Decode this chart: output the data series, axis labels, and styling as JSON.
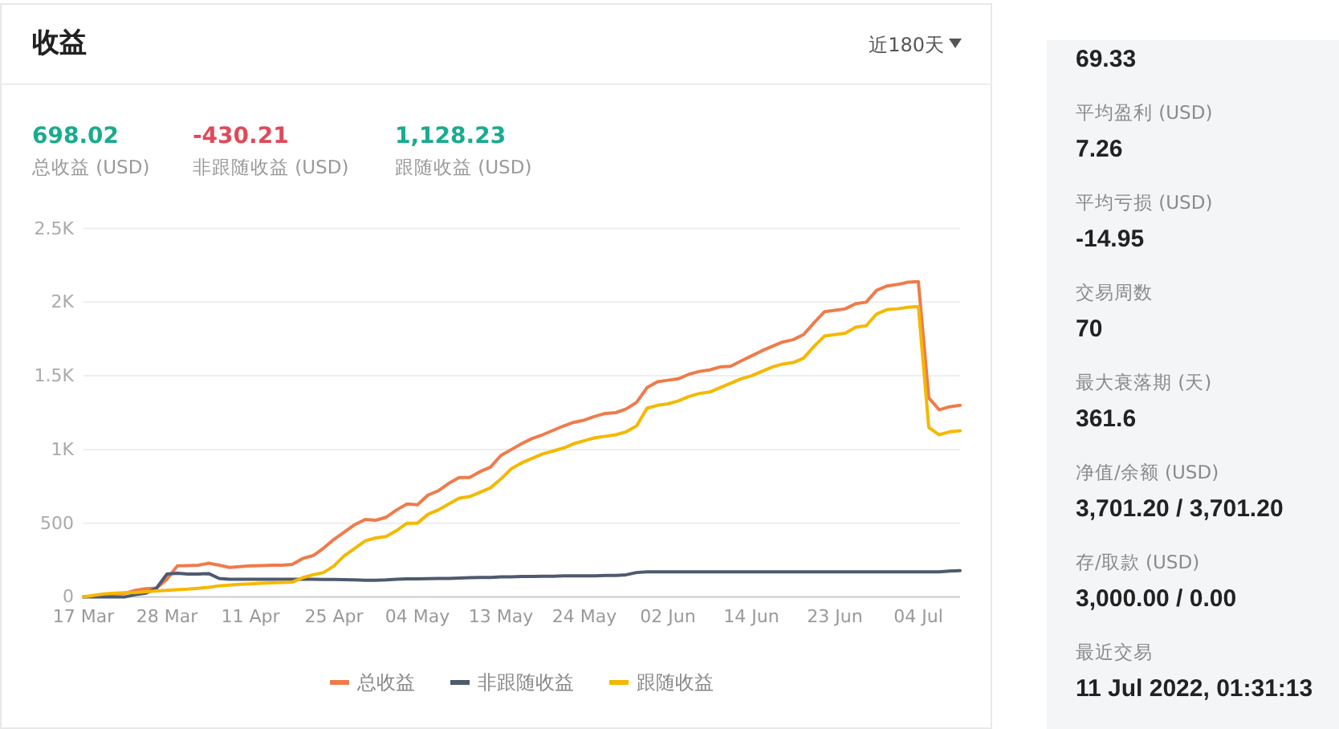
{
  "chart_data": [
    {
      "type": "line",
      "title": "收益",
      "annotations": [
        "近180天",
        "698.02",
        "总收益 (USD)",
        "-430.21",
        "非跟随收益 (USD)",
        "1,128.23",
        "跟随收益 (USD)"
      ],
      "categories": [
        "17 Mar",
        null,
        null,
        null,
        null,
        null,
        null,
        null,
        "28 Mar",
        null,
        null,
        null,
        null,
        null,
        null,
        null,
        "11 Apr",
        null,
        null,
        null,
        null,
        null,
        null,
        null,
        "25 Apr",
        null,
        null,
        null,
        null,
        null,
        null,
        null,
        "04 May",
        null,
        null,
        null,
        null,
        null,
        null,
        null,
        "13 May",
        null,
        null,
        null,
        null,
        null,
        null,
        null,
        "24 May",
        null,
        null,
        null,
        null,
        null,
        null,
        null,
        "02 Jun",
        null,
        null,
        null,
        null,
        null,
        null,
        null,
        "14 Jun",
        null,
        null,
        null,
        null,
        null,
        null,
        null,
        "23 Jun",
        null,
        null,
        null,
        null,
        null,
        null,
        null,
        "04 Jul",
        null,
        null,
        null,
        null
      ],
      "series": [
        {
          "name": "总收益",
          "color": "#ef7b4a",
          "values": [
            0,
            5,
            15,
            20,
            25,
            45,
            55,
            60,
            120,
            210,
            212,
            215,
            228,
            215,
            200,
            205,
            210,
            212,
            215,
            215,
            220,
            260,
            280,
            330,
            390,
            440,
            490,
            525,
            520,
            540,
            590,
            630,
            625,
            690,
            720,
            770,
            810,
            810,
            850,
            880,
            960,
            1000,
            1040,
            1075,
            1100,
            1130,
            1160,
            1185,
            1200,
            1225,
            1245,
            1250,
            1275,
            1320,
            1420,
            1460,
            1470,
            1480,
            1510,
            1530,
            1540,
            1560,
            1565,
            1600,
            1635,
            1670,
            1700,
            1730,
            1745,
            1780,
            1860,
            1935,
            1945,
            1955,
            1990,
            2000,
            2080,
            2110,
            2120,
            2135,
            2140,
            1350,
            1270,
            1290,
            1300
          ]
        },
        {
          "name": "非跟随收益",
          "color": "#4e5a6e",
          "values": [
            0,
            0,
            0,
            0,
            0,
            15,
            25,
            60,
            155,
            160,
            155,
            155,
            158,
            125,
            120,
            120,
            120,
            120,
            120,
            120,
            120,
            120,
            120,
            118,
            118,
            117,
            115,
            113,
            112,
            115,
            120,
            122,
            122,
            123,
            125,
            125,
            128,
            130,
            132,
            132,
            135,
            135,
            138,
            138,
            140,
            140,
            142,
            142,
            143,
            143,
            145,
            145,
            150,
            165,
            170,
            170,
            170,
            170,
            170,
            170,
            170,
            170,
            170,
            170,
            170,
            170,
            170,
            170,
            170,
            170,
            170,
            170,
            170,
            170,
            170,
            170,
            170,
            170,
            170,
            170,
            170,
            170,
            170,
            175,
            178
          ]
        },
        {
          "name": "跟随收益",
          "color": "#f5b800",
          "values": [
            0,
            10,
            20,
            25,
            28,
            30,
            35,
            40,
            45,
            48,
            52,
            58,
            65,
            75,
            80,
            85,
            88,
            92,
            95,
            98,
            100,
            130,
            150,
            165,
            210,
            280,
            330,
            380,
            400,
            410,
            450,
            500,
            500,
            560,
            590,
            630,
            670,
            680,
            710,
            740,
            800,
            870,
            910,
            940,
            970,
            990,
            1010,
            1040,
            1060,
            1080,
            1090,
            1100,
            1120,
            1160,
            1280,
            1300,
            1310,
            1330,
            1360,
            1380,
            1390,
            1420,
            1450,
            1480,
            1500,
            1530,
            1560,
            1580,
            1590,
            1620,
            1700,
            1770,
            1780,
            1790,
            1830,
            1840,
            1920,
            1950,
            1955,
            1965,
            1970,
            1150,
            1100,
            1120,
            1127
          ]
        }
      ],
      "ylim": [
        0,
        2500
      ],
      "yticks": [
        0,
        500,
        {
          "value": 1000,
          "label": "1K"
        },
        {
          "value": 1500,
          "label": "1.5K"
        },
        {
          "value": 2000,
          "label": "2K"
        },
        {
          "value": 2500,
          "label": "2.5K"
        }
      ],
      "grid": "y",
      "legend": "bottom",
      "marker": "none",
      "line_style": "solid"
    },
    {
      "type": "other",
      "annotations": [
        "69.33",
        "平均盈利 (USD)",
        "7.26",
        "平均亏损 (USD)",
        "-14.95",
        "交易周数",
        "70",
        "最大衰落期 (天)",
        "361.6",
        "净值/余额 (USD)",
        "3,701.20 / 3,701.20",
        "存/取款 (USD)",
        "3,000.00 / 0.00",
        "最近交易",
        "11 Jul 2022, 01:31:13"
      ]
    }
  ]
}
